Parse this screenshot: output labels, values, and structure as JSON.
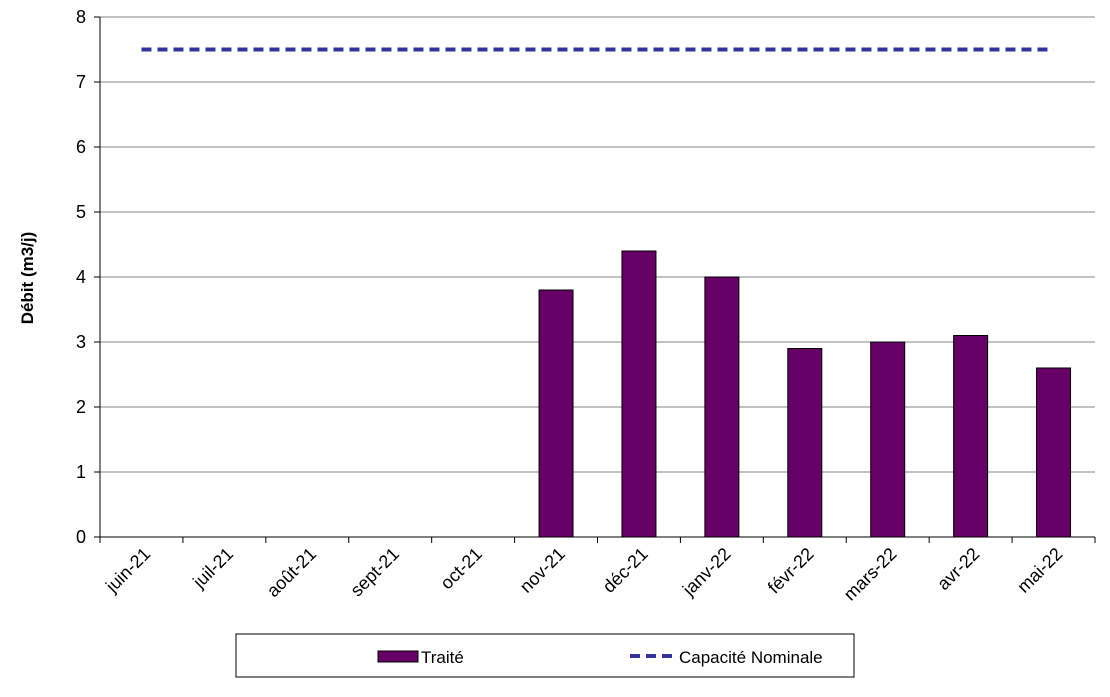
{
  "chart_data": {
    "type": "bar",
    "categories": [
      "juin-21",
      "juil-21",
      "août-21",
      "sept-21",
      "oct-21",
      "nov-21",
      "déc-21",
      "janv-22",
      "févr-22",
      "mars-22",
      "avr-22",
      "mai-22"
    ],
    "series": [
      {
        "name": "Traité",
        "type": "bar",
        "color": "#660066",
        "values": [
          null,
          null,
          null,
          null,
          null,
          3.8,
          4.4,
          4.0,
          2.9,
          3.0,
          3.1,
          2.6
        ]
      },
      {
        "name": "Capacité Nominale",
        "type": "line",
        "style": "dashed",
        "color": "#333399",
        "values": [
          7.5,
          7.5,
          7.5,
          7.5,
          7.5,
          7.5,
          7.5,
          7.5,
          7.5,
          7.5,
          7.5,
          7.5
        ]
      }
    ],
    "title": "",
    "xlabel": "",
    "ylabel": "Débit (m3/j)",
    "ylim": [
      0,
      8
    ],
    "yticks": [
      0,
      1,
      2,
      3,
      4,
      5,
      6,
      7,
      8
    ],
    "grid": true,
    "legend": "bottom"
  }
}
